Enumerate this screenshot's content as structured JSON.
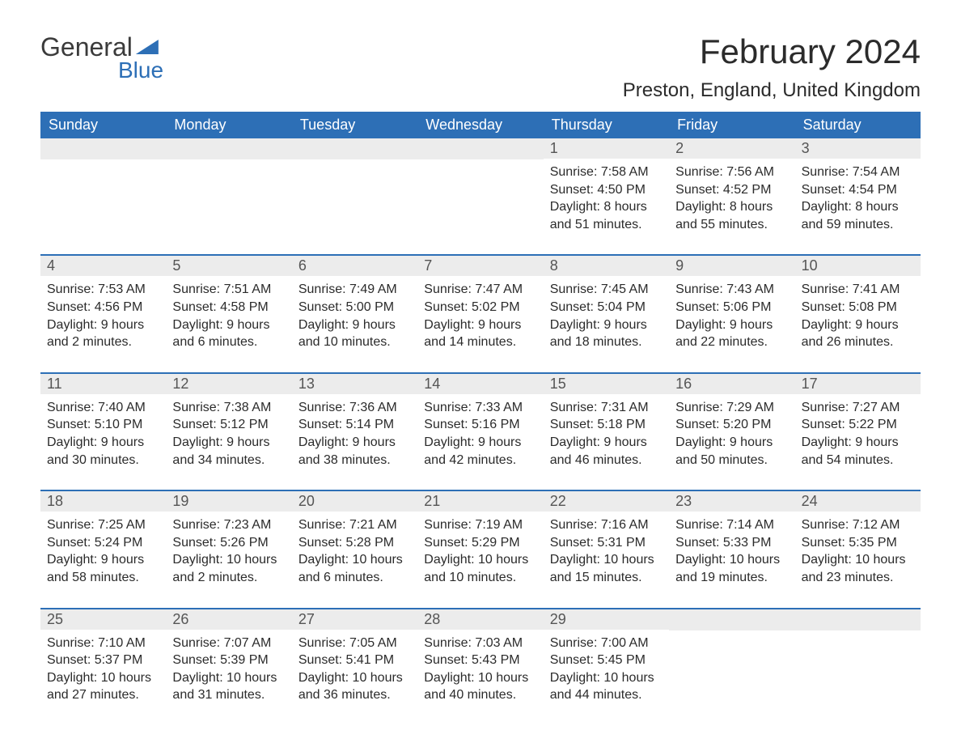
{
  "logo": {
    "word1": "General",
    "word2": "Blue"
  },
  "title": "February 2024",
  "location": "Preston, England, United Kingdom",
  "colors": {
    "header_bg": "#2d6fb6",
    "header_text": "#ffffff",
    "daynum_bg": "#ececec",
    "daynum_text": "#555555",
    "body_text": "#2b2b2b",
    "page_bg": "#ffffff"
  },
  "typography": {
    "font_family": "Arial",
    "title_fontsize": 42,
    "location_fontsize": 24,
    "header_fontsize": 18,
    "daynum_fontsize": 18,
    "info_fontsize": 16
  },
  "calendar": {
    "type": "table",
    "columns": [
      "Sunday",
      "Monday",
      "Tuesday",
      "Wednesday",
      "Thursday",
      "Friday",
      "Saturday"
    ],
    "weeks": [
      [
        null,
        null,
        null,
        null,
        {
          "n": "1",
          "sunrise": "7:58 AM",
          "sunset": "4:50 PM",
          "daylight": "8 hours and 51 minutes."
        },
        {
          "n": "2",
          "sunrise": "7:56 AM",
          "sunset": "4:52 PM",
          "daylight": "8 hours and 55 minutes."
        },
        {
          "n": "3",
          "sunrise": "7:54 AM",
          "sunset": "4:54 PM",
          "daylight": "8 hours and 59 minutes."
        }
      ],
      [
        {
          "n": "4",
          "sunrise": "7:53 AM",
          "sunset": "4:56 PM",
          "daylight": "9 hours and 2 minutes."
        },
        {
          "n": "5",
          "sunrise": "7:51 AM",
          "sunset": "4:58 PM",
          "daylight": "9 hours and 6 minutes."
        },
        {
          "n": "6",
          "sunrise": "7:49 AM",
          "sunset": "5:00 PM",
          "daylight": "9 hours and 10 minutes."
        },
        {
          "n": "7",
          "sunrise": "7:47 AM",
          "sunset": "5:02 PM",
          "daylight": "9 hours and 14 minutes."
        },
        {
          "n": "8",
          "sunrise": "7:45 AM",
          "sunset": "5:04 PM",
          "daylight": "9 hours and 18 minutes."
        },
        {
          "n": "9",
          "sunrise": "7:43 AM",
          "sunset": "5:06 PM",
          "daylight": "9 hours and 22 minutes."
        },
        {
          "n": "10",
          "sunrise": "7:41 AM",
          "sunset": "5:08 PM",
          "daylight": "9 hours and 26 minutes."
        }
      ],
      [
        {
          "n": "11",
          "sunrise": "7:40 AM",
          "sunset": "5:10 PM",
          "daylight": "9 hours and 30 minutes."
        },
        {
          "n": "12",
          "sunrise": "7:38 AM",
          "sunset": "5:12 PM",
          "daylight": "9 hours and 34 minutes."
        },
        {
          "n": "13",
          "sunrise": "7:36 AM",
          "sunset": "5:14 PM",
          "daylight": "9 hours and 38 minutes."
        },
        {
          "n": "14",
          "sunrise": "7:33 AM",
          "sunset": "5:16 PM",
          "daylight": "9 hours and 42 minutes."
        },
        {
          "n": "15",
          "sunrise": "7:31 AM",
          "sunset": "5:18 PM",
          "daylight": "9 hours and 46 minutes."
        },
        {
          "n": "16",
          "sunrise": "7:29 AM",
          "sunset": "5:20 PM",
          "daylight": "9 hours and 50 minutes."
        },
        {
          "n": "17",
          "sunrise": "7:27 AM",
          "sunset": "5:22 PM",
          "daylight": "9 hours and 54 minutes."
        }
      ],
      [
        {
          "n": "18",
          "sunrise": "7:25 AM",
          "sunset": "5:24 PM",
          "daylight": "9 hours and 58 minutes."
        },
        {
          "n": "19",
          "sunrise": "7:23 AM",
          "sunset": "5:26 PM",
          "daylight": "10 hours and 2 minutes."
        },
        {
          "n": "20",
          "sunrise": "7:21 AM",
          "sunset": "5:28 PM",
          "daylight": "10 hours and 6 minutes."
        },
        {
          "n": "21",
          "sunrise": "7:19 AM",
          "sunset": "5:29 PM",
          "daylight": "10 hours and 10 minutes."
        },
        {
          "n": "22",
          "sunrise": "7:16 AM",
          "sunset": "5:31 PM",
          "daylight": "10 hours and 15 minutes."
        },
        {
          "n": "23",
          "sunrise": "7:14 AM",
          "sunset": "5:33 PM",
          "daylight": "10 hours and 19 minutes."
        },
        {
          "n": "24",
          "sunrise": "7:12 AM",
          "sunset": "5:35 PM",
          "daylight": "10 hours and 23 minutes."
        }
      ],
      [
        {
          "n": "25",
          "sunrise": "7:10 AM",
          "sunset": "5:37 PM",
          "daylight": "10 hours and 27 minutes."
        },
        {
          "n": "26",
          "sunrise": "7:07 AM",
          "sunset": "5:39 PM",
          "daylight": "10 hours and 31 minutes."
        },
        {
          "n": "27",
          "sunrise": "7:05 AM",
          "sunset": "5:41 PM",
          "daylight": "10 hours and 36 minutes."
        },
        {
          "n": "28",
          "sunrise": "7:03 AM",
          "sunset": "5:43 PM",
          "daylight": "10 hours and 40 minutes."
        },
        {
          "n": "29",
          "sunrise": "7:00 AM",
          "sunset": "5:45 PM",
          "daylight": "10 hours and 44 minutes."
        },
        null,
        null
      ]
    ],
    "labels": {
      "sunrise": "Sunrise: ",
      "sunset": "Sunset: ",
      "daylight": "Daylight: "
    }
  }
}
